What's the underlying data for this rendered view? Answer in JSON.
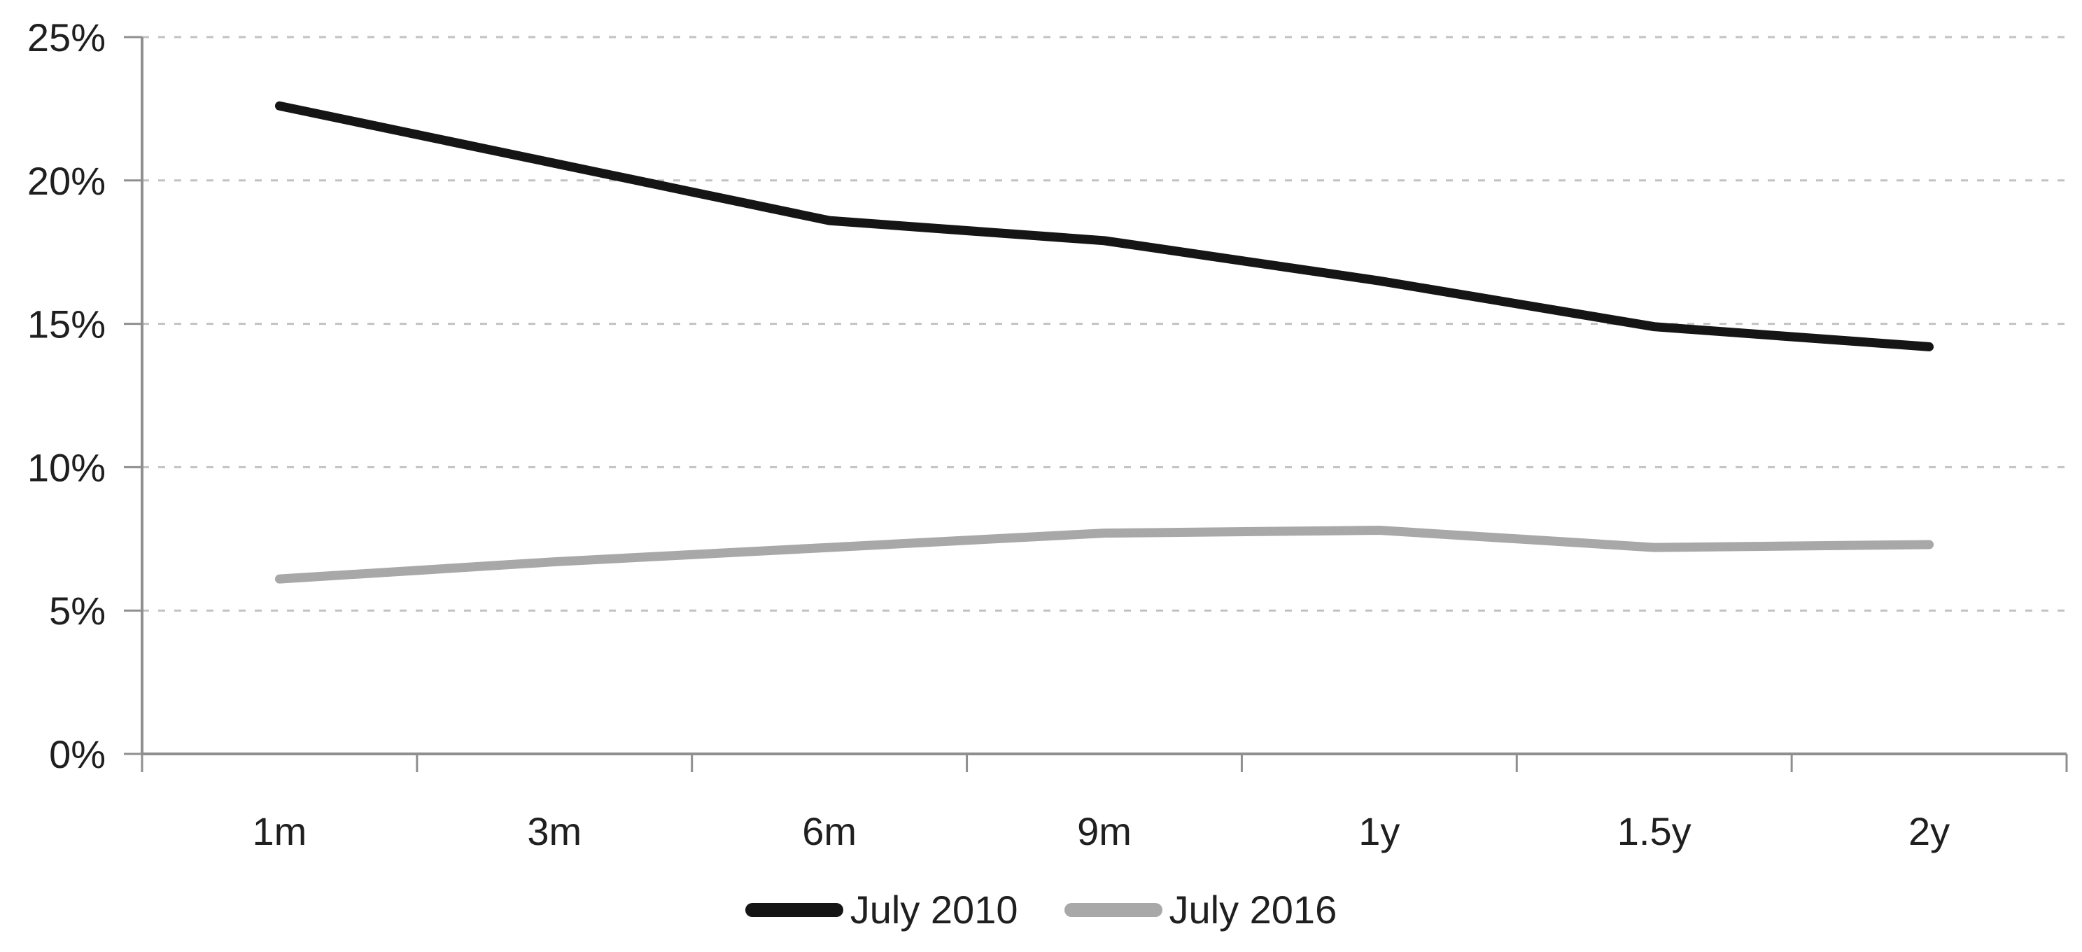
{
  "chart_data": {
    "type": "line",
    "categories": [
      "1m",
      "3m",
      "6m",
      "9m",
      "1y",
      "1.5y",
      "2y"
    ],
    "series": [
      {
        "name": "July 2010",
        "color": "#151515",
        "values": [
          22.6,
          20.6,
          18.6,
          17.9,
          16.5,
          14.9,
          14.2
        ]
      },
      {
        "name": "July 2016",
        "color": "#a8a8a8",
        "values": [
          6.1,
          6.7,
          7.2,
          7.7,
          7.8,
          7.2,
          7.3
        ]
      }
    ],
    "y_axis": {
      "min": 0,
      "max": 25,
      "step": 5,
      "tick_labels": [
        "0%",
        "5%",
        "10%",
        "15%",
        "20%",
        "25%"
      ],
      "format": "percent"
    },
    "x_axis": {
      "tick_labels": [
        "1m",
        "3m",
        "6m",
        "9m",
        "1y",
        "1.5y",
        "2y"
      ]
    },
    "title": "",
    "grid": "horizontal-dashed",
    "legend_position": "bottom-center",
    "colors": {
      "background": "#ffffff",
      "axis": "#8f8f8f",
      "gridline": "#c2c2c2",
      "text": "#1f1f1f"
    }
  }
}
